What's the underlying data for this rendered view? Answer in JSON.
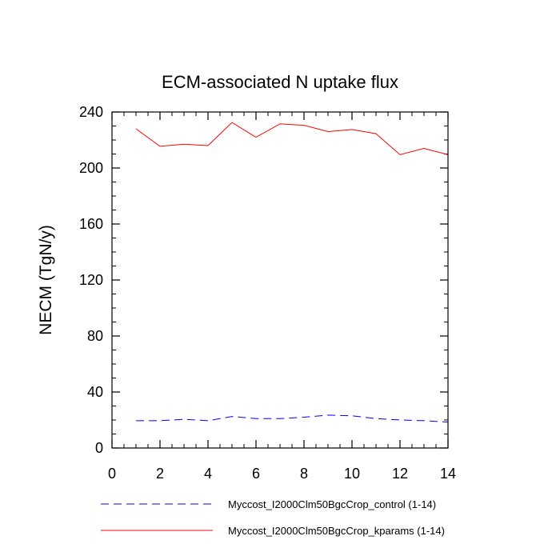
{
  "chart_data": {
    "type": "line",
    "title": "ECM-associated N uptake flux",
    "xlabel": "",
    "ylabel": "NECM  (TgN/y)",
    "xlim": [
      0,
      14
    ],
    "ylim": [
      0,
      240
    ],
    "xticks": [
      0,
      2,
      4,
      6,
      8,
      10,
      12,
      14
    ],
    "yticks": [
      0,
      40,
      80,
      120,
      160,
      200,
      240
    ],
    "grid": false,
    "legend_position": "bottom",
    "x": [
      1,
      2,
      3,
      4,
      5,
      6,
      7,
      8,
      9,
      10,
      11,
      12,
      13,
      14
    ],
    "series": [
      {
        "name": "Myccost_I2000Clm50BgcCrop_control (1-14)",
        "color": "#0000ff",
        "dash": "dashed",
        "values": [
          19.5,
          19.5,
          20.5,
          19.5,
          22.5,
          21,
          21,
          22,
          23.5,
          23,
          21,
          20,
          19.5,
          18.5
        ]
      },
      {
        "name": "Myccost_I2000Clm50BgcCrop_kparams (1-14)",
        "color": "#ff0000",
        "dash": "solid",
        "values": [
          228,
          215.5,
          217,
          216,
          232.5,
          222,
          231.5,
          230.5,
          226,
          227.5,
          224.5,
          209.5,
          214,
          209.5
        ]
      }
    ]
  }
}
